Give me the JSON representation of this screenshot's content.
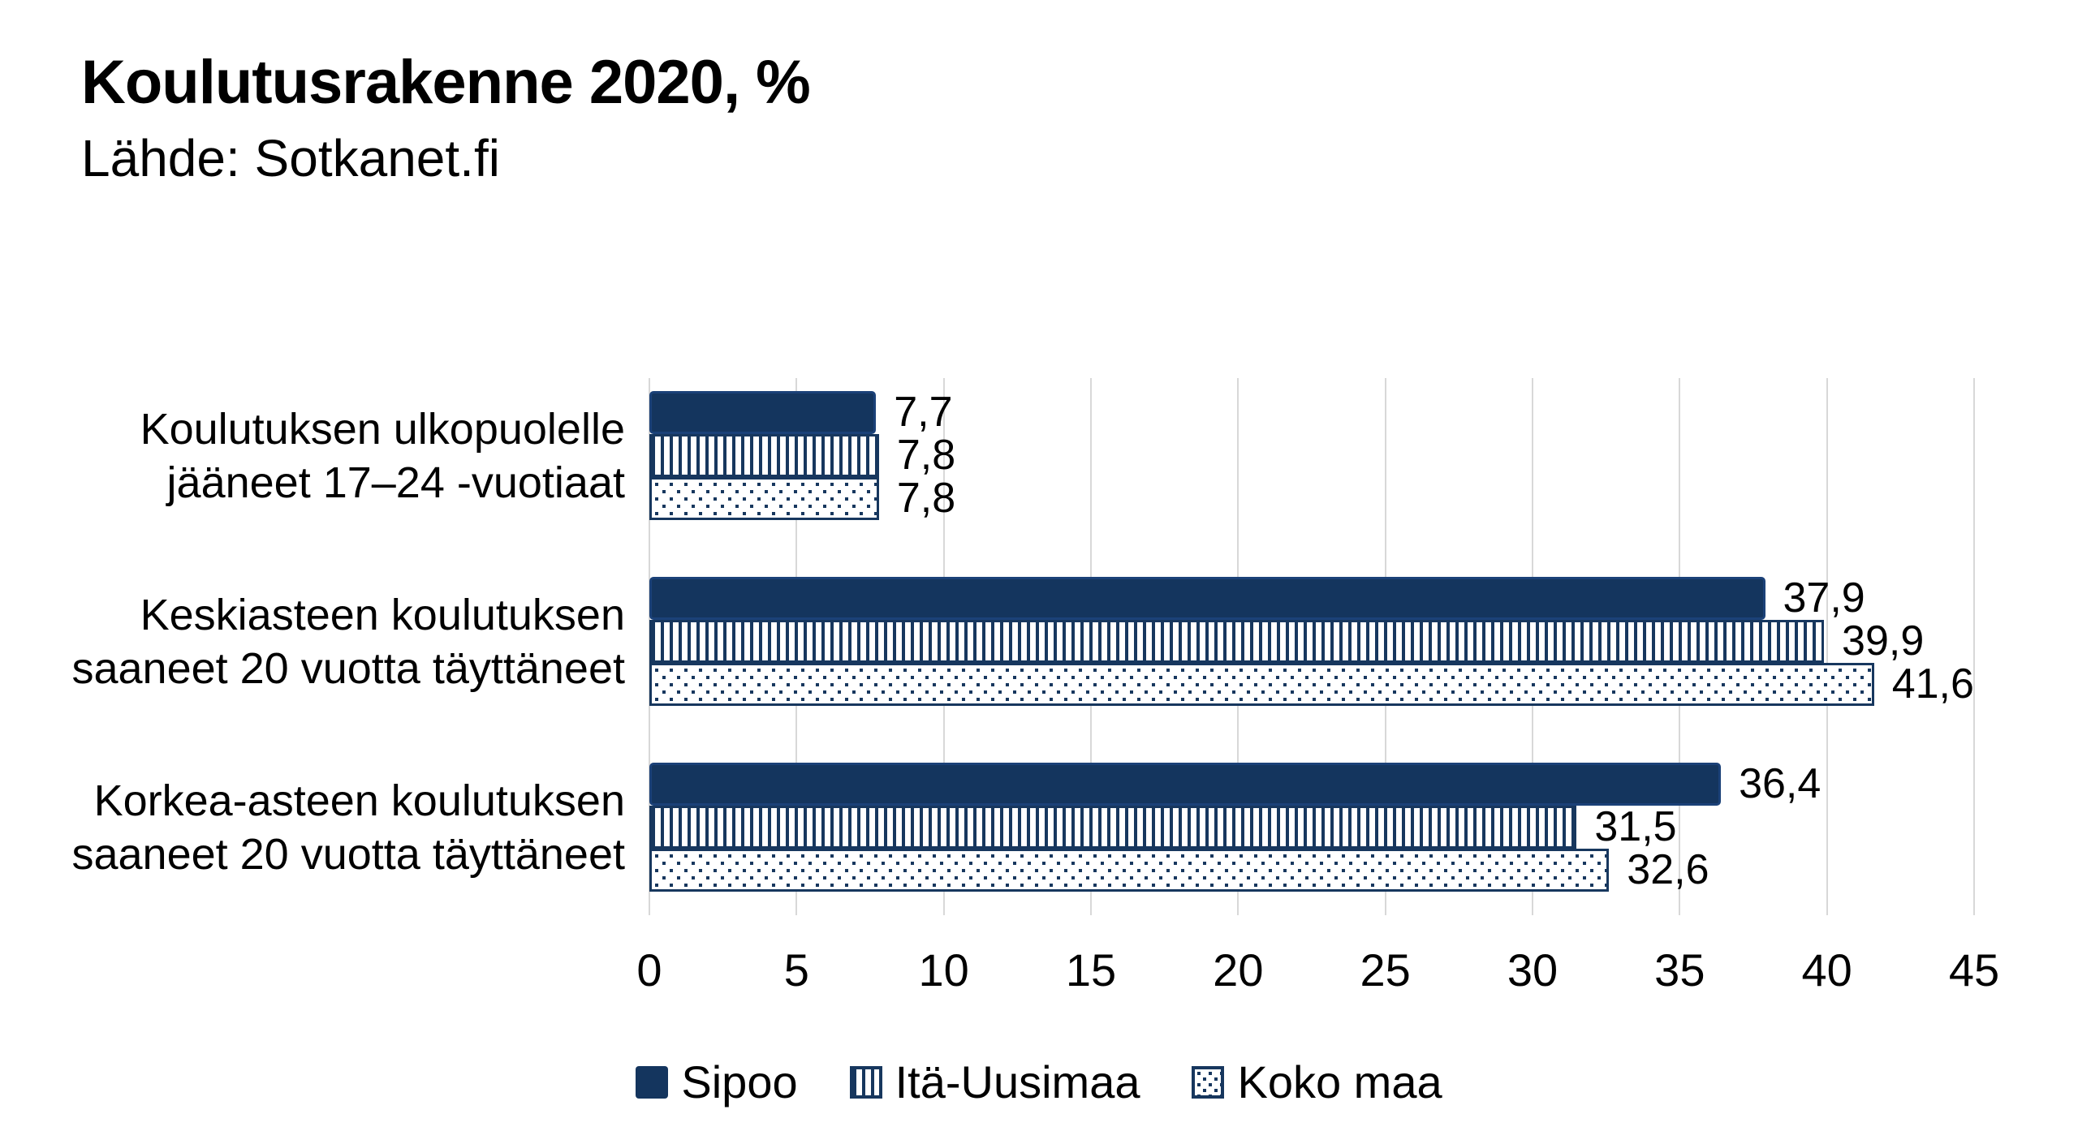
{
  "header": {
    "title": "Koulutusrakenne 2020, %",
    "source": "Lähde: Sotkanet.fi"
  },
  "chart_data": {
    "type": "bar",
    "orientation": "horizontal",
    "title": "Koulutusrakenne 2020, %",
    "source": "Lähde: Sotkanet.fi",
    "value_format": "decimal-comma",
    "categories": [
      "Koulutuksen ulkopuolelle jääneet 17–24 -vuotiaat",
      "Keskiasteen koulutuksen saaneet 20 vuotta täyttäneet",
      "Korkea-asteen koulutuksen saaneet 20 vuotta täyttäneet"
    ],
    "category_label_lines": [
      [
        "Koulutuksen ulkopuolelle",
        "jääneet 17–24 -vuotiaat"
      ],
      [
        "Keskiasteen koulutuksen",
        "saaneet 20 vuotta täyttäneet"
      ],
      [
        "Korkea-asteen koulutuksen",
        "saaneet 20 vuotta täyttäneet"
      ]
    ],
    "series": [
      {
        "name": "Sipoo",
        "pattern": "solid",
        "values": [
          7.7,
          37.9,
          36.4
        ],
        "value_labels": [
          "7,7",
          "37,9",
          "36,4"
        ]
      },
      {
        "name": "Itä-Uusimaa",
        "pattern": "vertical-stripes",
        "values": [
          7.8,
          39.9,
          31.5
        ],
        "value_labels": [
          "7,8",
          "39,9",
          "31,5"
        ]
      },
      {
        "name": "Koko maa",
        "pattern": "dots",
        "values": [
          7.8,
          41.6,
          32.6
        ],
        "value_labels": [
          "7,8",
          "41,6",
          "32,6"
        ]
      }
    ],
    "xlabel": "",
    "ylabel": "",
    "xlim": [
      0,
      45
    ],
    "x_ticks": [
      0,
      5,
      10,
      15,
      20,
      25,
      30,
      35,
      40,
      45
    ],
    "grid": "vertical",
    "legend_position": "bottom",
    "colors": {
      "navy": "#17375E",
      "solid_fill": "#14355E",
      "solid_border": "#1B4178",
      "grid": "#D8D8D8",
      "text": "#000000",
      "background": "#FFFFFF"
    }
  }
}
